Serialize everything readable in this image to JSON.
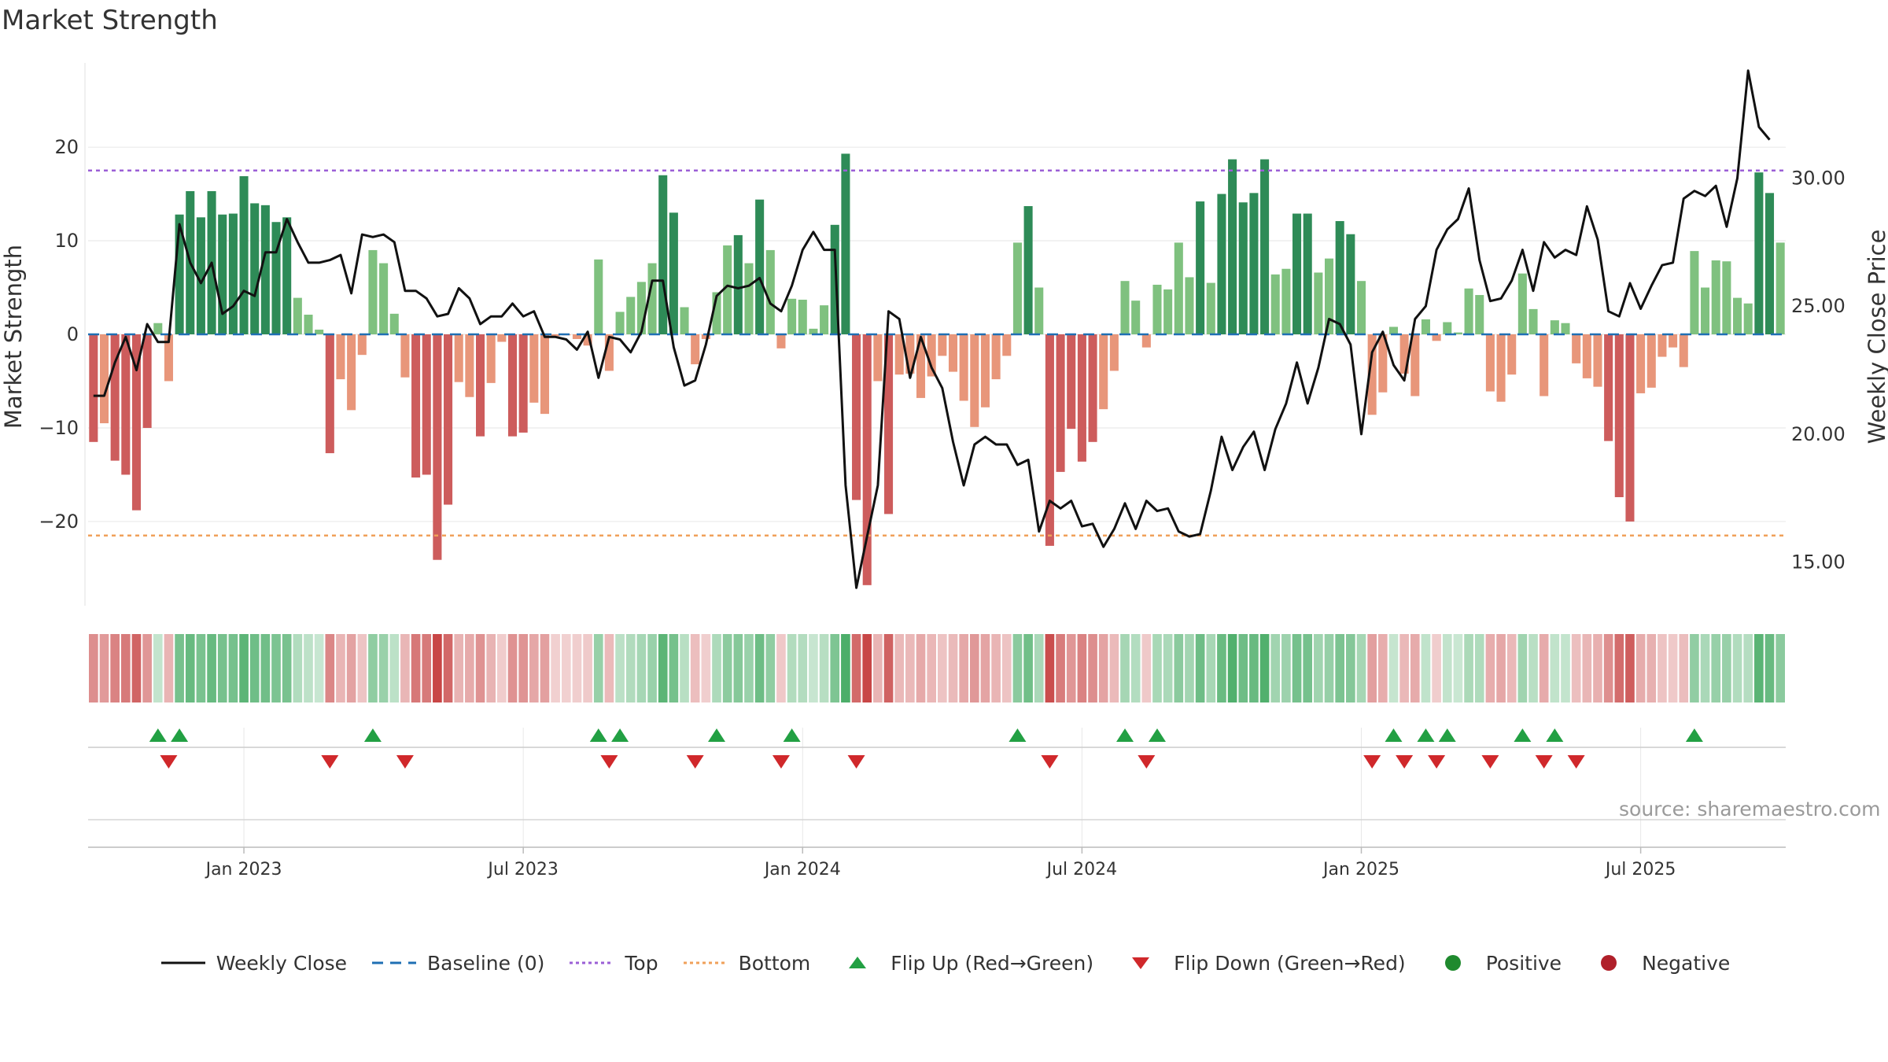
{
  "title": "Market Strength",
  "watermark": "source: sharemaestro.com",
  "chart_data": {
    "type": "bar",
    "xlabel": "",
    "ylabel_left": "Market Strength",
    "ylabel_right": "Weekly Close Price",
    "yticks_left": [
      -20,
      -10,
      0,
      10,
      20
    ],
    "ylim_left": [
      -29,
      29
    ],
    "yticks_right": [
      "15.00",
      "20.00",
      "25.00",
      "30.00"
    ],
    "yticks_right_values": [
      15,
      20,
      25,
      30
    ],
    "ylim_right": [
      13.3,
      34.5
    ],
    "xticks": [
      {
        "label": "Jan 2023",
        "week": 14
      },
      {
        "label": "Jul 2023",
        "week": 40
      },
      {
        "label": "Jan 2024",
        "week": 66
      },
      {
        "label": "Jul 2024",
        "week": 92
      },
      {
        "label": "Jan 2025",
        "week": 118
      },
      {
        "label": "Jul 2025",
        "week": 144
      }
    ],
    "top_line": 17.5,
    "bottom_line": -21.5,
    "baseline": 0,
    "strength": [
      -11.5,
      -9.5,
      -13.5,
      -15.0,
      -18.8,
      -10.0,
      1.2,
      -5.0,
      12.8,
      15.3,
      12.5,
      15.3,
      12.8,
      12.9,
      16.9,
      14.0,
      13.8,
      12.0,
      12.5,
      3.9,
      2.1,
      0.5,
      -12.7,
      -4.8,
      -8.1,
      -2.2,
      9.0,
      7.6,
      2.2,
      -4.6,
      -15.3,
      -15.0,
      -24.1,
      -18.2,
      -5.1,
      -6.7,
      -10.9,
      -5.2,
      -0.8,
      -10.9,
      -10.5,
      -7.3,
      -8.5,
      -0.2,
      -0.1,
      -0.5,
      -1.2,
      8.0,
      -3.9,
      2.4,
      4.0,
      5.6,
      7.6,
      17.0,
      13.0,
      2.9,
      -3.2,
      -0.5,
      4.5,
      9.5,
      10.6,
      7.6,
      14.4,
      9.0,
      -1.5,
      3.8,
      3.7,
      0.6,
      3.1,
      11.7,
      19.3,
      -17.7,
      -26.8,
      -5.0,
      -19.2,
      -4.3,
      -4.2,
      -6.8,
      -4.5,
      -2.3,
      -4.0,
      -7.1,
      -9.9,
      -7.8,
      -4.8,
      -2.3,
      9.8,
      13.7,
      5.0,
      -22.6,
      -14.7,
      -10.1,
      -13.6,
      -11.5,
      -8.0,
      -3.9,
      5.7,
      3.6,
      -1.4,
      5.3,
      4.8,
      9.8,
      6.1,
      14.2,
      5.5,
      15.0,
      18.7,
      14.1,
      15.1,
      18.7,
      6.4,
      7.0,
      12.9,
      12.9,
      6.6,
      8.1,
      12.1,
      10.7,
      5.7,
      -8.6,
      -6.2,
      0.8,
      -4.2,
      -6.6,
      1.6,
      -0.7,
      1.3,
      0.2,
      4.9,
      4.2,
      -6.1,
      -7.2,
      -4.3,
      6.5,
      2.7,
      -6.6,
      1.5,
      1.2,
      -3.1,
      -4.7,
      -5.6,
      -11.4,
      -17.4,
      -20.0,
      -6.3,
      -5.7,
      -2.4,
      -1.4,
      -3.5,
      8.9,
      5.0,
      7.9,
      7.8,
      3.9,
      3.3,
      17.3,
      15.1,
      9.8
    ],
    "weekly_close": [
      21.5,
      21.5,
      22.8,
      23.8,
      22.5,
      24.3,
      23.6,
      23.6,
      28.2,
      26.7,
      25.9,
      26.7,
      24.7,
      25.0,
      25.6,
      25.4,
      27.1,
      27.1,
      28.4,
      27.5,
      26.7,
      26.7,
      26.8,
      27.0,
      25.5,
      27.8,
      27.7,
      27.8,
      27.5,
      25.6,
      25.6,
      25.3,
      24.6,
      24.7,
      25.7,
      25.3,
      24.3,
      24.6,
      24.6,
      25.1,
      24.6,
      24.8,
      23.8,
      23.8,
      23.7,
      23.3,
      24.0,
      22.2,
      23.8,
      23.7,
      23.2,
      24.0,
      26.0,
      26.0,
      23.4,
      21.9,
      22.1,
      23.5,
      25.4,
      25.8,
      25.7,
      25.8,
      26.1,
      25.1,
      24.8,
      25.8,
      27.2,
      27.9,
      27.2,
      27.2,
      18.0,
      14.0,
      16.0,
      18.0,
      24.8,
      24.5,
      22.2,
      23.8,
      22.6,
      21.8,
      19.7,
      18.0,
      19.6,
      19.9,
      19.6,
      19.6,
      18.8,
      19.0,
      16.2,
      17.4,
      17.1,
      17.4,
      16.4,
      16.5,
      15.6,
      16.3,
      17.3,
      16.3,
      17.4,
      17.0,
      17.1,
      16.2,
      16.0,
      16.1,
      17.8,
      19.9,
      18.6,
      19.5,
      20.1,
      18.6,
      20.2,
      21.2,
      22.8,
      21.2,
      22.6,
      24.5,
      24.3,
      23.5,
      20.0,
      23.2,
      24.0,
      22.7,
      22.1,
      24.5,
      25.0,
      27.2,
      28.0,
      28.4,
      29.6,
      26.8,
      25.2,
      25.3,
      26.0,
      27.2,
      25.6,
      27.5,
      26.9,
      27.2,
      27.0,
      28.9,
      27.6,
      24.8,
      24.6,
      25.9,
      24.9,
      25.8,
      26.6,
      26.7,
      29.2,
      29.5,
      29.3,
      29.7,
      28.1,
      30.0,
      34.2,
      32.0,
      31.5
    ],
    "legend": [
      {
        "label": "Weekly Close",
        "kind": "line-solid",
        "color": "#111111"
      },
      {
        "label": "Baseline (0)",
        "kind": "line-dashed",
        "color": "#1f6fb4"
      },
      {
        "label": "Top",
        "kind": "line-dotted",
        "color": "#9b5fd6"
      },
      {
        "label": "Bottom",
        "kind": "line-dotted",
        "color": "#f0a05a"
      },
      {
        "label": "Flip Up (Red→Green)",
        "kind": "triangle-up",
        "color": "#22a043"
      },
      {
        "label": "Flip Down (Green→Red)",
        "kind": "triangle-down",
        "color": "#d0282b"
      },
      {
        "label": "Positive",
        "kind": "dot",
        "color": "#1f8a2e"
      },
      {
        "label": "Negative",
        "kind": "dot",
        "color": "#b0202a"
      }
    ],
    "colors": {
      "strong_green": "#2e8b57",
      "light_green": "#7fc17f",
      "strong_red": "#cd5c5c",
      "light_red": "#e8967a",
      "top": "#9b5fd6",
      "bottom": "#f0a05a",
      "baseline": "#1f6fb4",
      "price": "#111111",
      "flip_up": "#22a043",
      "flip_down": "#d0282b"
    }
  }
}
